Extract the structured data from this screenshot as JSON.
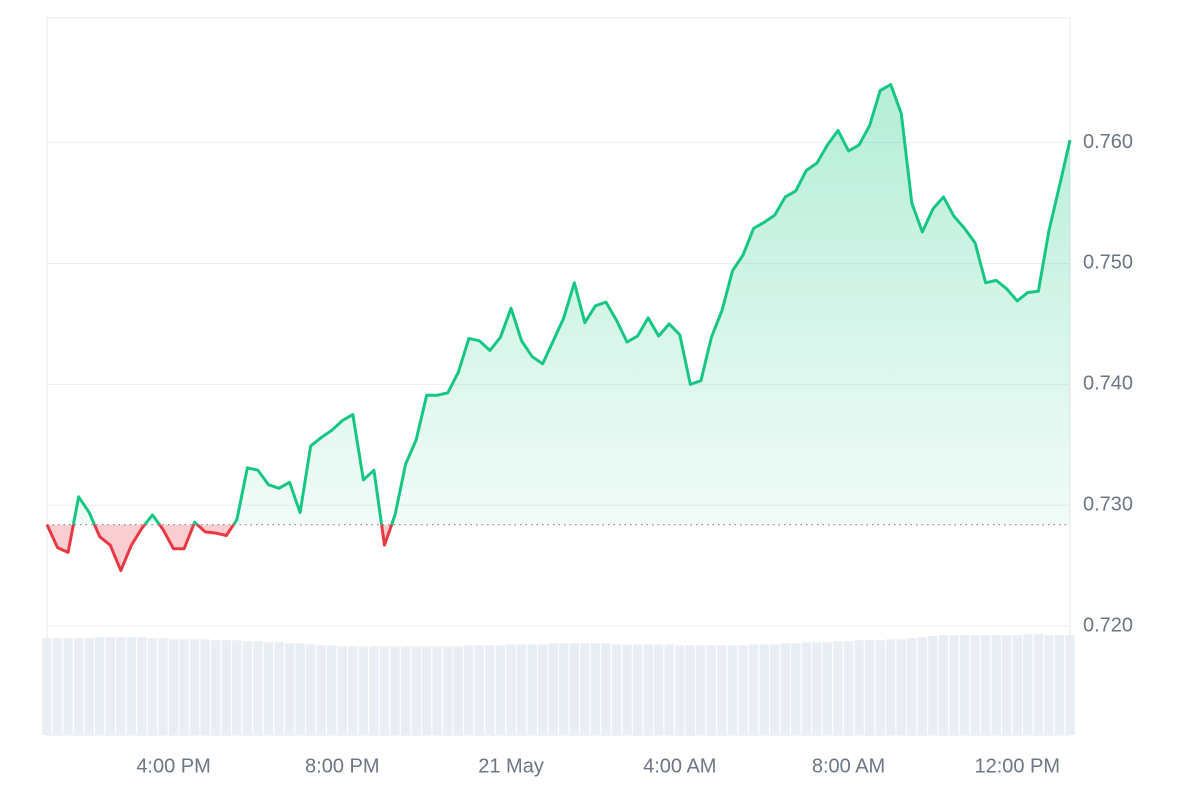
{
  "chart_data": {
    "type": "line",
    "x": [
      1,
      1.25,
      1.5,
      1.75,
      2,
      2.25,
      2.5,
      2.75,
      3,
      3.25,
      3.5,
      3.75,
      4,
      4.25,
      4.5,
      4.75,
      5,
      5.25,
      5.5,
      5.75,
      6,
      6.25,
      6.5,
      6.75,
      7,
      7.25,
      7.5,
      7.75,
      8,
      8.25,
      8.5,
      8.75,
      9,
      9.25,
      9.5,
      9.75,
      10,
      10.25,
      10.5,
      10.75,
      11,
      11.25,
      11.5,
      11.75,
      12,
      12.25,
      12.5,
      12.75,
      13,
      13.25,
      13.5,
      13.75,
      14,
      14.25,
      14.5,
      14.75,
      15,
      15.25,
      15.5,
      15.75,
      16,
      16.25,
      16.5,
      16.75,
      17,
      17.25,
      17.5,
      17.75,
      18,
      18.25,
      18.5,
      18.75,
      19,
      19.25,
      19.5,
      19.75,
      20,
      20.25,
      20.5,
      20.75,
      21,
      21.25,
      21.5,
      21.75,
      22,
      22.25,
      22.5,
      22.75,
      23,
      23.25,
      23.5,
      23.75,
      24,
      24.25,
      24.5,
      24.75,
      25,
      25.25
    ],
    "values": [
      0.7284,
      0.7265,
      0.7261,
      0.7307,
      0.7294,
      0.7274,
      0.7267,
      0.7246,
      0.7267,
      0.7281,
      0.7292,
      0.728,
      0.7264,
      0.7264,
      0.7286,
      0.7278,
      0.7277,
      0.7275,
      0.7288,
      0.7331,
      0.7329,
      0.7317,
      0.7314,
      0.7319,
      0.7294,
      0.7349,
      0.7356,
      0.7362,
      0.737,
      0.7375,
      0.7321,
      0.7329,
      0.7267,
      0.7292,
      0.7334,
      0.7354,
      0.7391,
      0.7391,
      0.7393,
      0.741,
      0.7438,
      0.7436,
      0.7428,
      0.7439,
      0.7463,
      0.7436,
      0.7423,
      0.7417,
      0.7436,
      0.7455,
      0.7484,
      0.7451,
      0.7465,
      0.7468,
      0.7453,
      0.7435,
      0.744,
      0.7455,
      0.744,
      0.745,
      0.7441,
      0.74,
      0.7403,
      0.7439,
      0.7461,
      0.7494,
      0.7507,
      0.7529,
      0.7534,
      0.754,
      0.7555,
      0.756,
      0.7577,
      0.7583,
      0.7598,
      0.761,
      0.7593,
      0.7598,
      0.7614,
      0.7643,
      0.7648,
      0.7624,
      0.755,
      0.7526,
      0.7545,
      0.7555,
      0.7539,
      0.7529,
      0.7517,
      0.7484,
      0.7486,
      0.7479,
      0.7469,
      0.7476,
      0.7477,
      0.7527,
      0.7564,
      0.7602
    ],
    "volume": [
      94,
      94,
      94,
      94,
      94,
      95,
      95,
      95,
      95,
      95,
      94,
      94,
      93,
      93,
      93,
      93,
      92,
      92,
      92,
      91,
      91,
      90,
      90,
      89,
      89,
      88,
      87,
      87,
      86,
      86,
      86,
      86,
      86,
      86,
      86,
      86,
      86,
      86,
      86,
      86,
      87,
      87,
      87,
      87,
      88,
      88,
      88,
      88,
      89,
      89,
      89,
      89,
      89,
      89,
      88,
      88,
      88,
      88,
      88,
      88,
      87,
      87,
      87,
      87,
      87,
      87,
      87,
      88,
      88,
      88,
      89,
      89,
      90,
      90,
      90,
      91,
      91,
      92,
      92,
      92,
      93,
      93,
      94,
      95,
      96,
      97,
      97,
      97,
      97,
      97,
      97,
      97,
      97,
      98,
      98,
      97,
      97,
      97
    ],
    "up_color": "#16c784",
    "down_color": "#ea3943",
    "volume_color": "#e9eef4",
    "xlim": [
      1,
      25.25
    ],
    "ylim": [
      0.711,
      0.7703
    ],
    "vlim": [
      0,
      100
    ],
    "xticks": [
      {
        "value": 4,
        "label": "4:00 PM"
      },
      {
        "value": 8,
        "label": "8:00 PM"
      },
      {
        "value": 12,
        "label": "21 May"
      },
      {
        "value": 16,
        "label": "4:00 AM"
      },
      {
        "value": 20,
        "label": "8:00 AM"
      },
      {
        "value": 24,
        "label": "12:00 PM"
      }
    ],
    "yticks": [
      {
        "value": 0.72,
        "label": "0.720"
      },
      {
        "value": 0.73,
        "label": "0.730"
      },
      {
        "value": 0.74,
        "label": "0.740"
      },
      {
        "value": 0.75,
        "label": "0.750"
      },
      {
        "value": 0.76,
        "label": "0.760"
      }
    ],
    "grid": true
  }
}
